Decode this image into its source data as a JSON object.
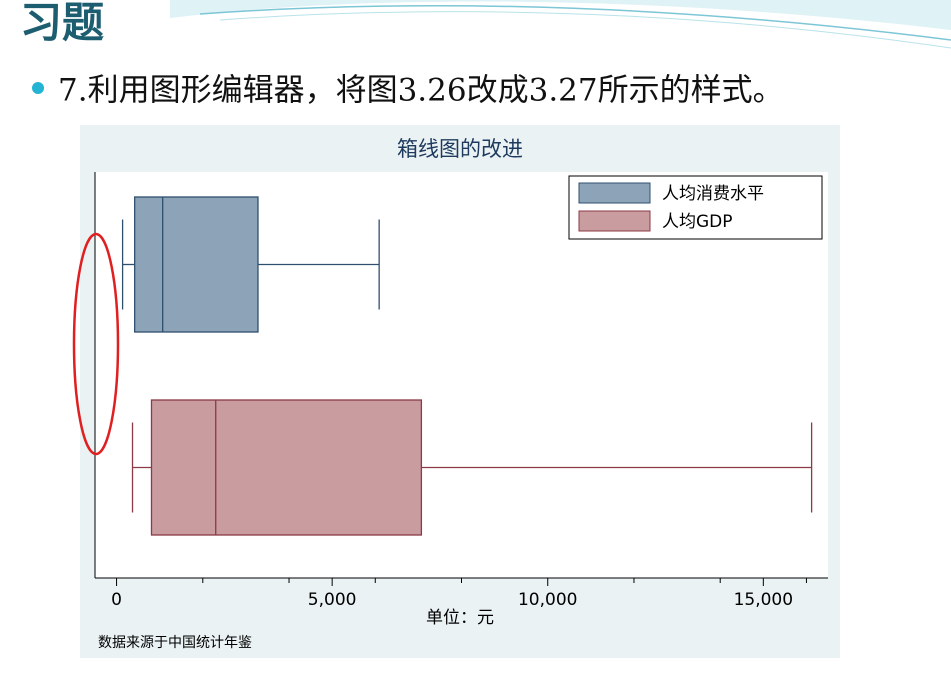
{
  "header": {
    "title": "习题",
    "bullet": "7.利用图形编辑器，将图3.26改成3.27所示的样式。"
  },
  "chart_data": {
    "type": "boxplot",
    "title": "箱线图的改进",
    "orientation": "horizontal",
    "xlabel": "单位：元",
    "note": "数据来源于中国统计年鉴",
    "xlim": [
      -500,
      16500
    ],
    "xticks": [
      0,
      {
        "value": 5000,
        "label": "5,000"
      },
      {
        "value": 10000,
        "label": "10,000"
      },
      {
        "value": 15000,
        "label": "15,000"
      }
    ],
    "xticks_minor": [
      2000,
      4000,
      6000,
      8000,
      12000,
      14000,
      16000
    ],
    "legend": "upper right",
    "series": [
      {
        "name": "人均消费水平",
        "color": "#8da4b8",
        "edgecolor": "#2f4f6f",
        "whislo": 140,
        "q1": 420,
        "med": 1070,
        "q3": 3280,
        "whishi": 6090
      },
      {
        "name": "人均GDP",
        "color": "#c99ca0",
        "edgecolor": "#8b3a46",
        "whislo": 370,
        "q1": 810,
        "med": 2300,
        "q3": 7070,
        "whishi": 16120
      }
    ]
  }
}
